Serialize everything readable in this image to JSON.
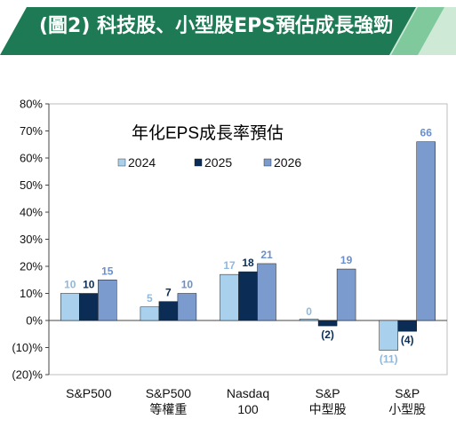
{
  "banner": {
    "title": "(圖2) 科技股、小型股EPS預估成長強勁",
    "colors": {
      "main": "#1e7a55",
      "accent_light": "#bfe3cc",
      "accent_mid": "#6cc08f"
    }
  },
  "chart_data": {
    "type": "bar",
    "title": "年化EPS成長率預估",
    "categories": [
      [
        "S&P500"
      ],
      [
        "S&P500",
        "等權重"
      ],
      [
        "Nasdaq",
        "100"
      ],
      [
        "S&P",
        "中型股"
      ],
      [
        "S&P",
        "小型股"
      ]
    ],
    "series": [
      {
        "name": "2024",
        "values": [
          10,
          5,
          17,
          0,
          -11
        ],
        "labels": [
          "10",
          "5",
          "17",
          "0",
          "(11)"
        ],
        "color": "#a9d1ee",
        "label_color": "#8fb8dc"
      },
      {
        "name": "2025",
        "values": [
          10,
          7,
          18,
          -2,
          -4
        ],
        "labels": [
          "10",
          "7",
          "18",
          "(2)",
          "(4)"
        ],
        "color": "#0b2d55",
        "label_color": "#0b2d55"
      },
      {
        "name": "2026",
        "values": [
          15,
          10,
          21,
          19,
          66
        ],
        "labels": [
          "15",
          "10",
          "21",
          "19",
          "66"
        ],
        "color": "#7b9bce",
        "label_color": "#6b8fca"
      }
    ],
    "ylim": [
      -20,
      80
    ],
    "yticks": [
      -20,
      -10,
      0,
      10,
      20,
      30,
      40,
      50,
      60,
      70,
      80
    ],
    "ytick_labels": [
      "(20)%",
      "(10)%",
      "0%",
      "10%",
      "20%",
      "30%",
      "40%",
      "50%",
      "60%",
      "70%",
      "80%"
    ],
    "legend_position": "top-left, inside plot",
    "grid": false
  }
}
